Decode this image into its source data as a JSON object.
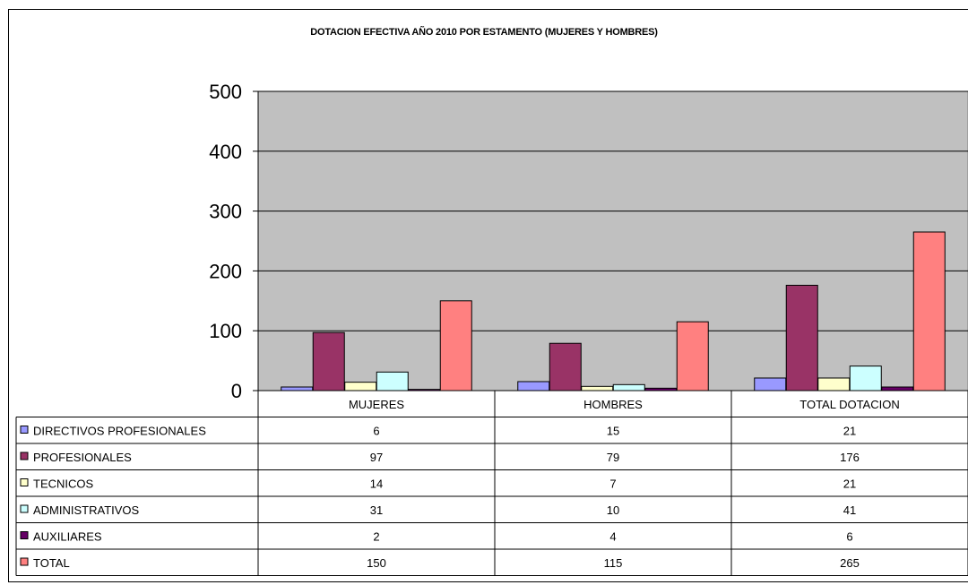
{
  "chart_data": {
    "type": "bar",
    "title": "DOTACION EFECTIVA AÑO 2010 POR ESTAMENTO (MUJERES Y HOMBRES)",
    "categories": [
      "MUJERES",
      "HOMBRES",
      "TOTAL DOTACION"
    ],
    "series": [
      {
        "name": "DIRECTIVOS PROFESIONALES",
        "values": [
          6,
          15,
          21
        ],
        "color": "#9999ff"
      },
      {
        "name": "PROFESIONALES",
        "values": [
          97,
          79,
          176
        ],
        "color": "#993366"
      },
      {
        "name": "TECNICOS",
        "values": [
          14,
          7,
          21
        ],
        "color": "#ffffcc"
      },
      {
        "name": "ADMINISTRATIVOS",
        "values": [
          31,
          10,
          41
        ],
        "color": "#ccffff"
      },
      {
        "name": "AUXILIARES",
        "values": [
          2,
          4,
          6
        ],
        "color": "#660066"
      },
      {
        "name": "TOTAL",
        "values": [
          150,
          115,
          265
        ],
        "color": "#ff8080"
      }
    ],
    "ylim": [
      0,
      500
    ],
    "yticks": [
      0,
      100,
      200,
      300,
      400,
      500
    ],
    "plot_background": "#c0c0c0",
    "grid": true,
    "legend": "data-table"
  }
}
